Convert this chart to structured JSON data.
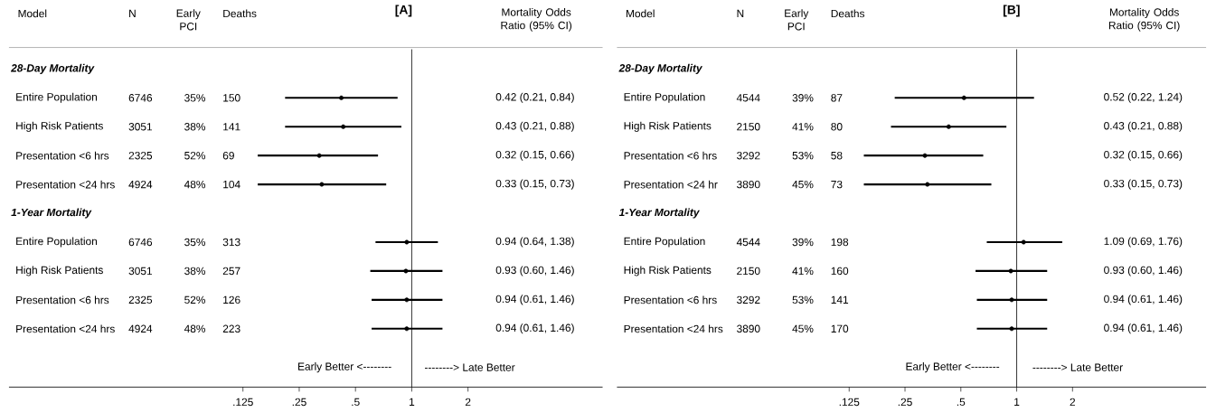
{
  "chart_data": [
    {
      "type": "scatter",
      "orientation": "horizontal",
      "title": "[A]",
      "ylabel": "Model",
      "color": "#000000",
      "marker": "circle",
      "log": "x",
      "categories": [
        "28-Day Mortality",
        "Entire Population",
        "High Risk Patients",
        "Presentation <6 hrs",
        "Presentation <24 hrs",
        "1-Year Mortality",
        "Entire Population",
        "High Risk Patients",
        "Presentation <6 hrs",
        "Presentation <24 hrs"
      ],
      "values": [
        null,
        0.42,
        0.43,
        0.32,
        0.33,
        null,
        0.94,
        0.93,
        0.94,
        0.94
      ],
      "errors": [
        null,
        [
          0.21,
          0.84
        ],
        [
          0.21,
          0.88
        ],
        [
          0.15,
          0.66
        ],
        [
          0.15,
          0.73
        ],
        null,
        [
          0.64,
          1.38
        ],
        [
          0.6,
          1.46
        ],
        [
          0.61,
          1.46
        ],
        [
          0.61,
          1.46
        ]
      ],
      "xlim": [
        0.007,
        10.5
      ],
      "xticks": [
        {
          "value": 0.125,
          "label": ".125"
        },
        {
          "value": 0.25,
          "label": ".25"
        },
        {
          "value": 0.5,
          "label": ".5"
        },
        1,
        2
      ],
      "ref_lines": [
        {
          "axis": "x",
          "value": 1
        }
      ],
      "annotations": [
        "N",
        "Early PCI",
        "Deaths",
        "Mortality Odds Ratio (95% CI)",
        "Early Better <--------",
        "--------> Late Better",
        "6746",
        "35%",
        "150",
        "0.42 (0.21, 0.84)",
        "3051",
        "38%",
        "141",
        "0.43 (0.21, 0.88)",
        "2325",
        "52%",
        "69",
        "0.32 (0.15, 0.66)",
        "4924",
        "48%",
        "104",
        "0.33 (0.15, 0.73)",
        "6746",
        "35%",
        "313",
        "0.94 (0.64, 1.38)",
        "3051",
        "38%",
        "257",
        "0.93 (0.60, 1.46)",
        "2325",
        "52%",
        "126",
        "0.94 (0.61, 1.46)",
        "4924",
        "48%",
        "223",
        "0.94 (0.61, 1.46)"
      ]
    },
    {
      "type": "scatter",
      "orientation": "horizontal",
      "title": "[B]",
      "ylabel": "Model",
      "color": "#000000",
      "marker": "circle",
      "log": "x",
      "categories": [
        "28-Day Mortality",
        "Entire Population",
        "High Risk Patients",
        "Presentation <6 hrs",
        "Presentation <24 hr",
        "1-Year Mortality",
        "Entire Population",
        "High Risk Patients",
        "Presentation <6 hrs",
        "Presentation <24 hrs"
      ],
      "values": [
        null,
        0.52,
        0.43,
        0.32,
        0.33,
        null,
        1.09,
        0.93,
        0.94,
        0.94
      ],
      "errors": [
        null,
        [
          0.22,
          1.24
        ],
        [
          0.21,
          0.88
        ],
        [
          0.15,
          0.66
        ],
        [
          0.15,
          0.73
        ],
        null,
        [
          0.69,
          1.76
        ],
        [
          0.6,
          1.46
        ],
        [
          0.61,
          1.46
        ],
        [
          0.61,
          1.46
        ]
      ],
      "xlim": [
        0.007,
        10.5
      ],
      "xticks": [
        {
          "value": 0.125,
          "label": ".125"
        },
        {
          "value": 0.25,
          "label": ".25"
        },
        {
          "value": 0.5,
          "label": ".5"
        },
        1,
        2
      ],
      "ref_lines": [
        {
          "axis": "x",
          "value": 1
        }
      ],
      "annotations": [
        "N",
        "Early PCI",
        "Deaths",
        "Mortality Odds Ratio (95% CI)",
        "Early Better <--------",
        "--------> Late Better",
        "4544",
        "39%",
        "87",
        "0.52 (0.22, 1.24)",
        "2150",
        "41%",
        "80",
        "0.43 (0.21, 0.88)",
        "3292",
        "53%",
        "58",
        "0.32 (0.15, 0.66)",
        "3890",
        "45%",
        "73",
        "0.33 (0.15, 0.73)",
        "4544",
        "39%",
        "198",
        "1.09 (0.69, 1.76)",
        "2150",
        "41%",
        "160",
        "0.93 (0.60, 1.46)",
        "3292",
        "53%",
        "141",
        "0.94 (0.61, 1.46)",
        "3890",
        "45%",
        "170",
        "0.94 (0.61, 1.46)"
      ]
    }
  ]
}
